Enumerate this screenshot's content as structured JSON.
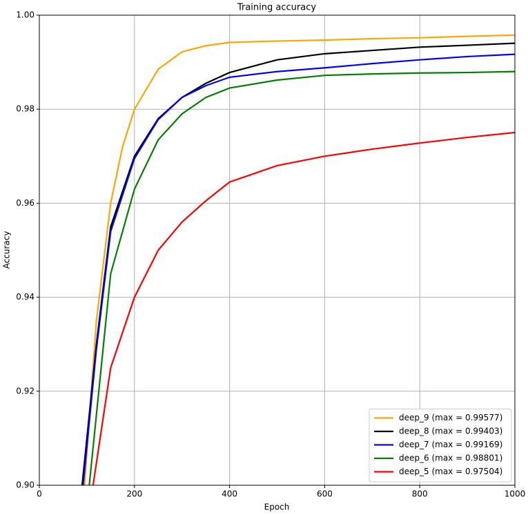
{
  "chart_data": {
    "type": "line",
    "title": "Training accuracy",
    "x_label": "Epoch",
    "y_label": "Accuracy",
    "xlim": [
      0,
      1000
    ],
    "xticks": [
      0,
      200,
      400,
      600,
      800,
      1000
    ],
    "ylim": [
      0.9,
      1.0
    ],
    "yticks": [
      {
        "value": 0.9,
        "label": "0.90"
      },
      0.92,
      0.94,
      0.96,
      0.98,
      {
        "value": 1.0,
        "label": "1.00"
      }
    ],
    "grid": true,
    "legend": "lower right",
    "series": [
      {
        "name": "deep_9 (max = 0.99577)",
        "color": "#ffa500",
        "x": [
          95,
          120,
          150,
          175,
          200,
          250,
          300,
          350,
          400,
          500,
          600,
          700,
          800,
          900,
          1000
        ],
        "values": [
          0.9,
          0.935,
          0.96,
          0.972,
          0.98,
          0.9885,
          0.9922,
          0.9935,
          0.9942,
          0.9945,
          0.9947,
          0.995,
          0.9952,
          0.9955,
          0.99577
        ]
      },
      {
        "name": "deep_8 (max = 0.99403)",
        "color": "#000000",
        "x": [
          90,
          120,
          150,
          200,
          250,
          300,
          350,
          400,
          500,
          600,
          700,
          800,
          900,
          1000
        ],
        "values": [
          0.9,
          0.93,
          0.955,
          0.97,
          0.978,
          0.9825,
          0.9855,
          0.9878,
          0.9905,
          0.9918,
          0.9925,
          0.9932,
          0.9936,
          0.99403
        ]
      },
      {
        "name": "deep_7 (max = 0.99169)",
        "color": "#0000ff",
        "x": [
          92,
          120,
          150,
          200,
          250,
          300,
          350,
          400,
          500,
          600,
          700,
          800,
          900,
          1000
        ],
        "values": [
          0.9,
          0.929,
          0.954,
          0.9695,
          0.9778,
          0.9825,
          0.985,
          0.9868,
          0.988,
          0.9888,
          0.9897,
          0.9905,
          0.9912,
          0.99169
        ]
      },
      {
        "name": "deep_6 (max = 0.98801)",
        "color": "#008000",
        "x": [
          105,
          150,
          200,
          250,
          300,
          350,
          400,
          500,
          600,
          700,
          800,
          900,
          1000
        ],
        "values": [
          0.9,
          0.945,
          0.963,
          0.9735,
          0.979,
          0.9825,
          0.9845,
          0.9862,
          0.9872,
          0.9875,
          0.9877,
          0.9878,
          0.98801
        ]
      },
      {
        "name": "deep_5 (max = 0.97504)",
        "color": "#ff0000",
        "x": [
          113,
          150,
          200,
          250,
          300,
          350,
          400,
          500,
          600,
          700,
          800,
          900,
          1000
        ],
        "values": [
          0.9,
          0.925,
          0.94,
          0.95,
          0.956,
          0.9605,
          0.9645,
          0.968,
          0.97,
          0.9715,
          0.9728,
          0.974,
          0.97504
        ]
      }
    ]
  }
}
